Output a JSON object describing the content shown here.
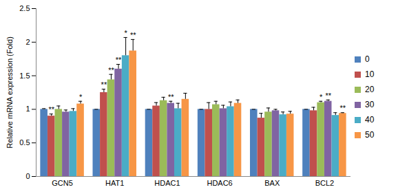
{
  "chart_data": {
    "type": "bar",
    "y_label": "Relative mRNA expression (Fold)",
    "categories": [
      "GCN5",
      "HAT1",
      "HDAC1",
      "HDAC6",
      "BAX",
      "BCL2"
    ],
    "ylim": [
      0,
      2.5
    ],
    "yticks": [
      0,
      0.5,
      1,
      1.5,
      2,
      2.5
    ],
    "grid": false,
    "legend": "right",
    "series": [
      {
        "name": "0",
        "color": "#4F81BD",
        "values": [
          1.0,
          1.0,
          1.0,
          1.0,
          1.0,
          1.0
        ],
        "errors": [
          0.01,
          0.0,
          0.0,
          0.0,
          0.0,
          0.0
        ],
        "significance": [
          null,
          null,
          null,
          null,
          null,
          null
        ]
      },
      {
        "name": "10",
        "color": "#C0504D",
        "values": [
          0.9,
          1.25,
          1.05,
          1.0,
          0.87,
          0.98
        ],
        "errors": [
          0.03,
          0.05,
          0.05,
          0.1,
          0.07,
          0.05
        ],
        "significance": [
          "**",
          "**",
          null,
          null,
          null,
          null
        ]
      },
      {
        "name": "20",
        "color": "#9BBB59",
        "values": [
          1.0,
          1.44,
          1.13,
          1.07,
          0.96,
          1.1
        ],
        "errors": [
          0.05,
          0.08,
          0.05,
          0.05,
          0.06,
          0.02
        ],
        "significance": [
          null,
          "**",
          null,
          null,
          null,
          "*"
        ]
      },
      {
        "name": "30",
        "color": "#8064A2",
        "values": [
          0.96,
          1.6,
          1.09,
          1.01,
          0.98,
          1.12
        ],
        "errors": [
          0.03,
          0.07,
          0.03,
          0.05,
          0.02,
          0.02
        ],
        "significance": [
          null,
          "**",
          "**",
          null,
          null,
          "**"
        ]
      },
      {
        "name": "40",
        "color": "#4BACC6",
        "values": [
          0.97,
          1.8,
          1.01,
          1.04,
          0.92,
          0.91
        ],
        "errors": [
          0.04,
          0.27,
          0.08,
          0.07,
          0.04,
          0.04
        ],
        "significance": [
          null,
          "*",
          null,
          null,
          null,
          null
        ]
      },
      {
        "name": "50",
        "color": "#F79646",
        "values": [
          1.08,
          1.87,
          1.15,
          1.09,
          0.93,
          0.94
        ],
        "errors": [
          0.04,
          0.17,
          0.09,
          0.05,
          0.04,
          0.01
        ],
        "significance": [
          "*",
          "**",
          null,
          null,
          null,
          "**"
        ]
      }
    ]
  }
}
